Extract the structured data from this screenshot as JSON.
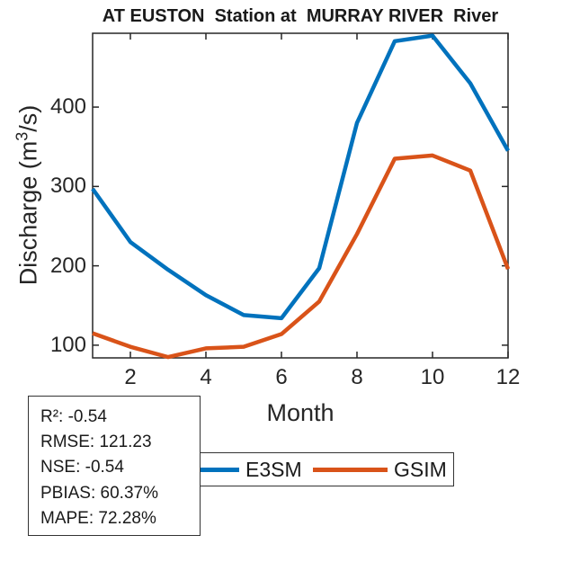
{
  "chart_data": {
    "type": "line",
    "title": "AT EUSTON  Station at  MURRAY RIVER  River",
    "xlabel": "Month",
    "ylabel": "Discharge (m³/s)",
    "ylabel_parts": {
      "prefix": "Discharge (m",
      "sup": "3",
      "suffix": "/s)"
    },
    "x": [
      1,
      2,
      3,
      4,
      5,
      6,
      7,
      8,
      9,
      10,
      11,
      12
    ],
    "series": [
      {
        "name": "E3SM",
        "color": "#0072BD",
        "values": [
          297,
          230,
          195,
          163,
          138,
          134,
          197,
          380,
          483,
          490,
          430,
          345
        ]
      },
      {
        "name": "GSIM",
        "color": "#D95319",
        "values": [
          115,
          98,
          85,
          96,
          98,
          114,
          155,
          240,
          335,
          339,
          320,
          196
        ]
      }
    ],
    "xticks": [
      2,
      4,
      6,
      8,
      10,
      12
    ],
    "yticks": [
      100,
      200,
      300,
      400
    ],
    "xlim": [
      1,
      12
    ],
    "ylim": [
      84,
      493
    ],
    "grid": false,
    "legend_position": "below axis, horizontal",
    "axis_color": "#262626"
  },
  "stats_box": {
    "lines": [
      "R²: -0.54",
      "RMSE: 121.23",
      "NSE: -0.54",
      "PBIAS: 60.37%",
      "MAPE: 72.28%"
    ]
  }
}
